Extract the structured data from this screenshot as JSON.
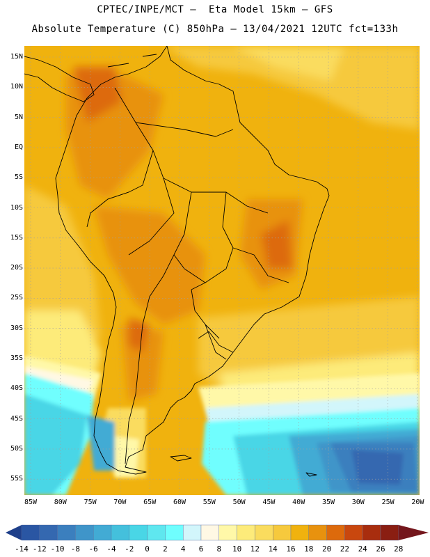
{
  "header": {
    "line1": "CPTEC/INPE/MCT –  Eta Model 15km – GFS",
    "line2": "Absolute Temperature (C) 850hPa – 13/04/2021 12UTC fct=133h"
  },
  "map": {
    "lat_labels": [
      "15N",
      "10N",
      "5N",
      "EQ",
      "5S",
      "10S",
      "15S",
      "20S",
      "25S",
      "30S",
      "35S",
      "40S",
      "45S",
      "50S",
      "55S"
    ],
    "lon_labels": [
      "85W",
      "80W",
      "75W",
      "70W",
      "65W",
      "60W",
      "55W",
      "50W",
      "45W",
      "40W",
      "35W",
      "30W",
      "25W",
      "20W"
    ]
  },
  "colorbar": {
    "labels": [
      "-14",
      "-12",
      "-10",
      "-8",
      "-6",
      "-4",
      "-2",
      "0",
      "2",
      "4",
      "6",
      "8",
      "10",
      "12",
      "14",
      "16",
      "18",
      "20",
      "22",
      "24",
      "26",
      "28"
    ],
    "colors": [
      "#1e3f8a",
      "#2a56a3",
      "#3468b0",
      "#3b7fbe",
      "#3f95c9",
      "#42abd4",
      "#44c0dc",
      "#49d6e6",
      "#5fe7ef",
      "#6ffefe",
      "#d2f6fb",
      "#fff8e4",
      "#fff8a8",
      "#fdeb7a",
      "#fadc5e",
      "#f6c93d",
      "#f0b20e",
      "#e8920e",
      "#dd6a0c",
      "#c9470e",
      "#a82d0e",
      "#8a1e12",
      "#74161c"
    ]
  }
}
